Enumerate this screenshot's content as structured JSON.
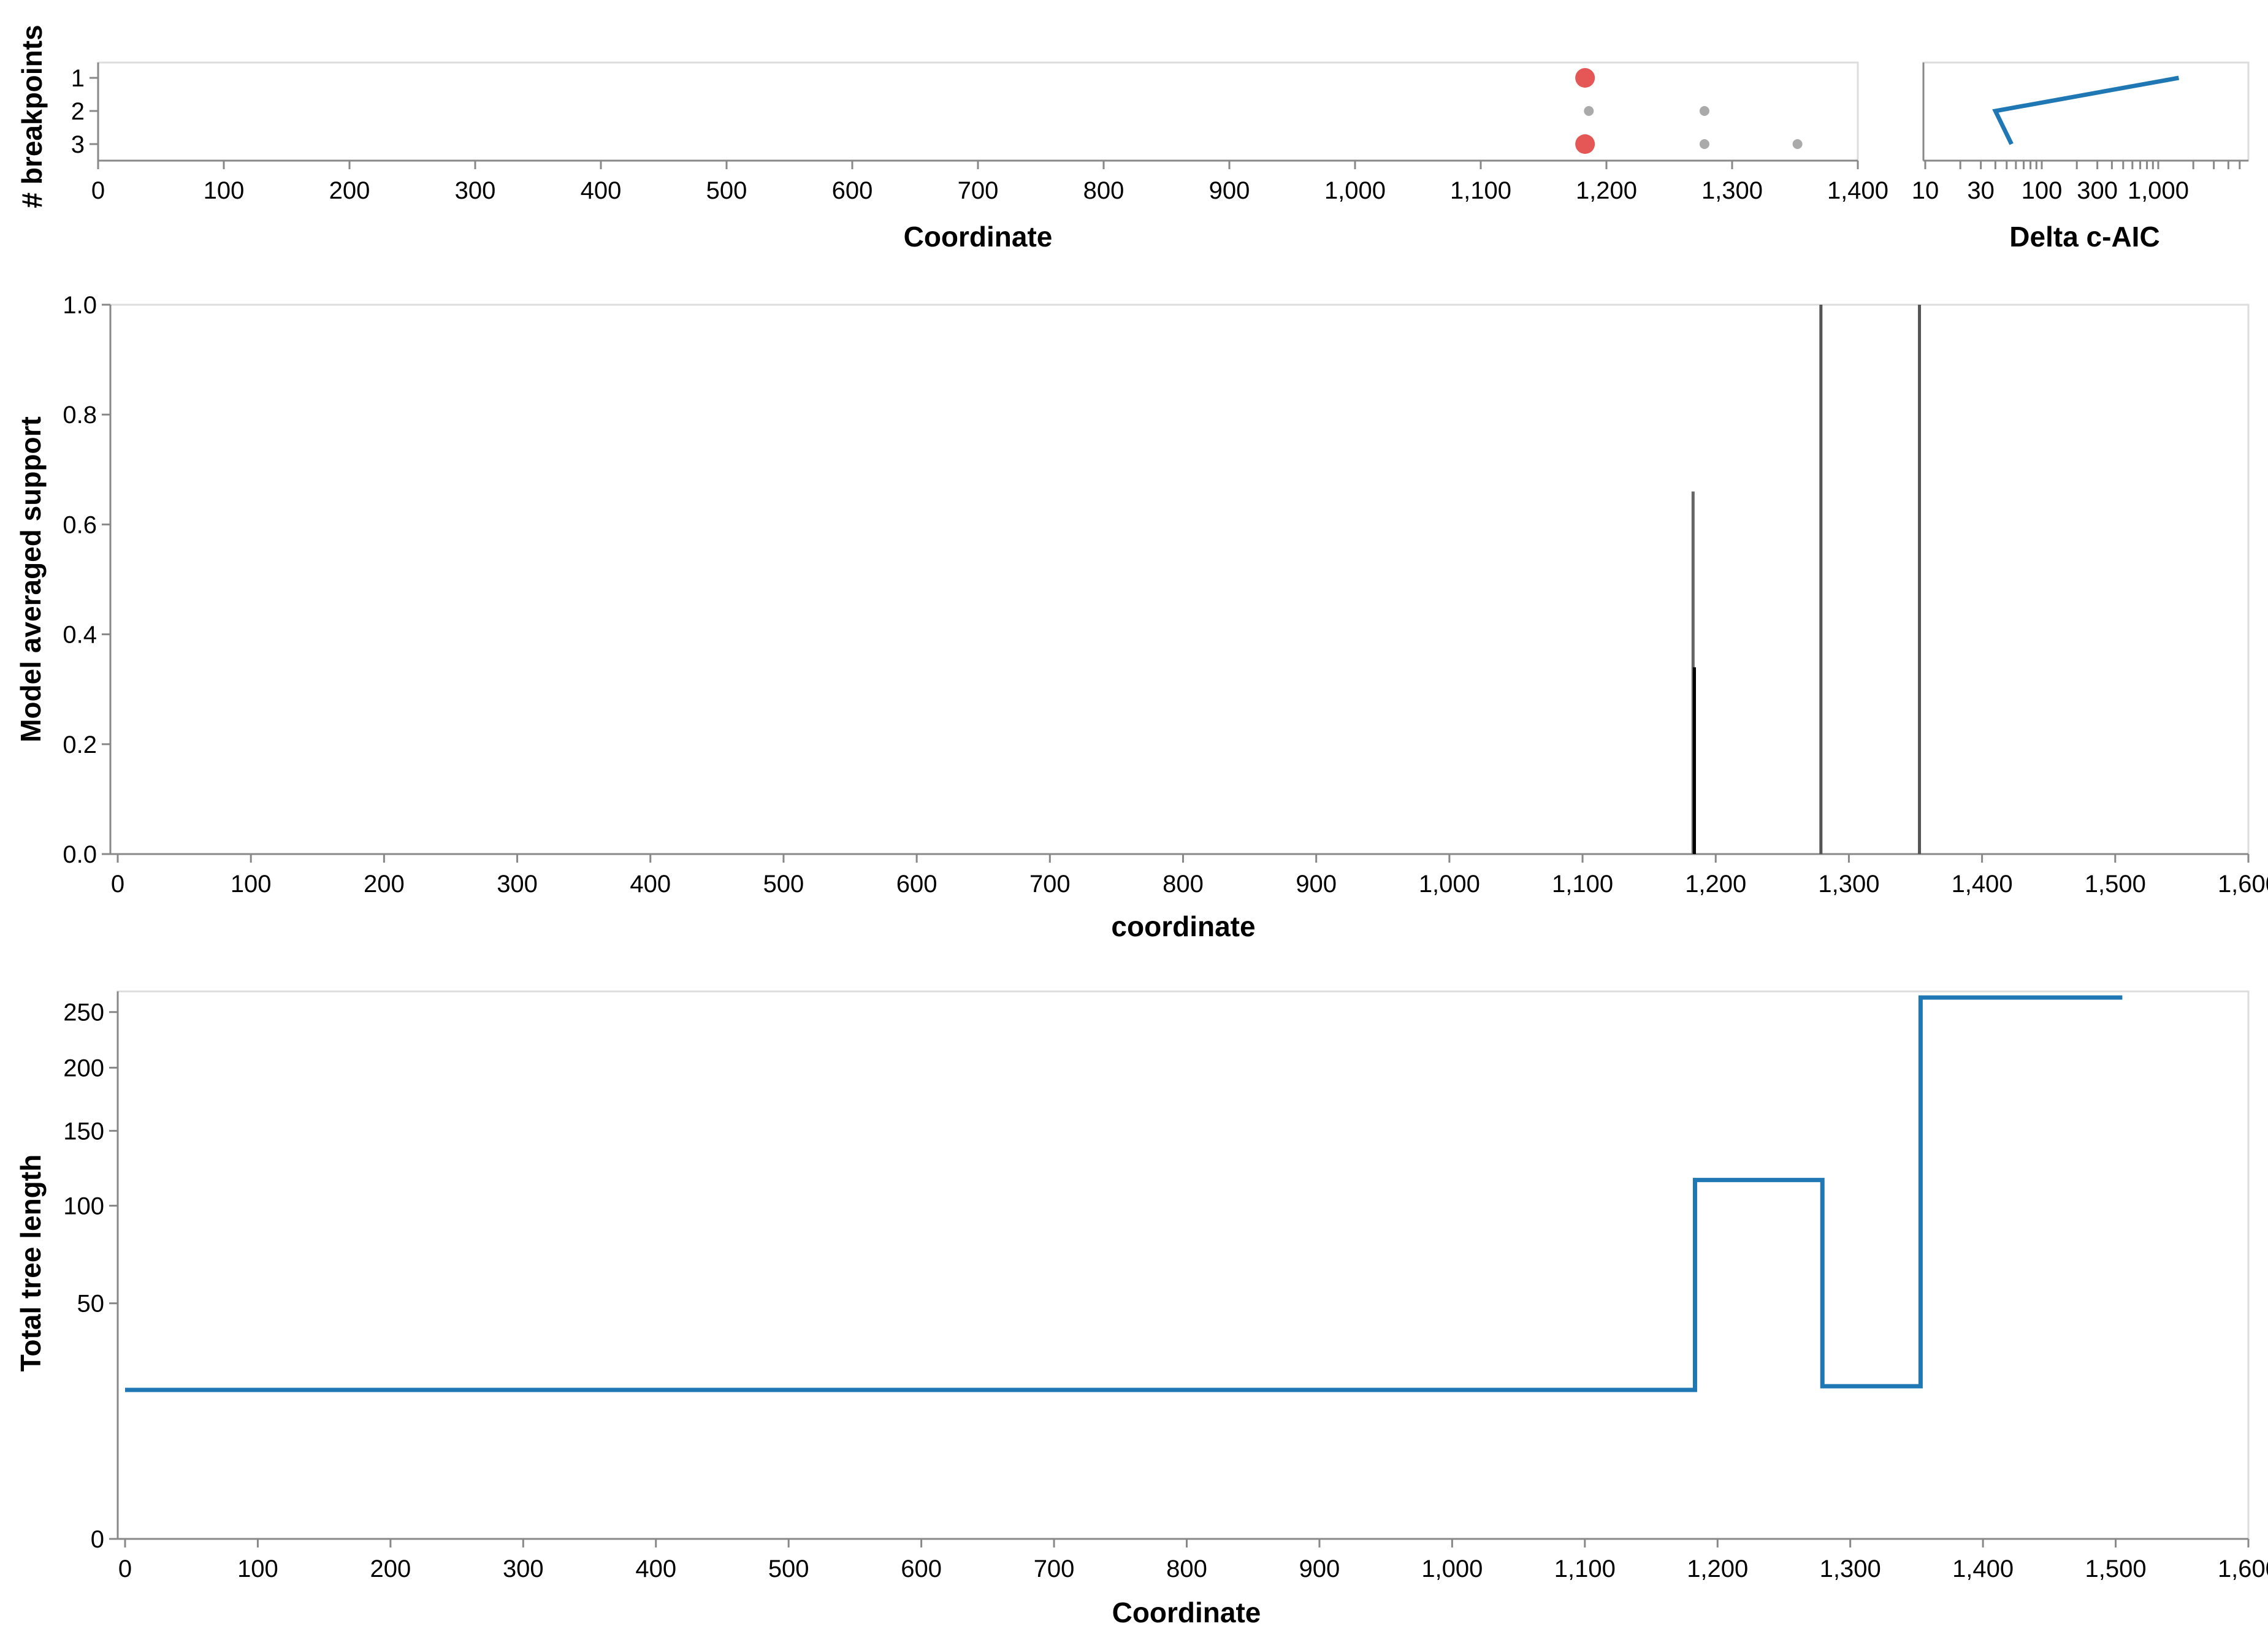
{
  "chart_data": [
    {
      "id": "breakpoints",
      "type": "scatter",
      "xlabel": "Coordinate",
      "ylabel": "# breakpoints",
      "xlim": [
        0,
        1400
      ],
      "xticks": [
        0,
        100,
        200,
        300,
        400,
        500,
        600,
        700,
        800,
        900,
        1000,
        1100,
        1200,
        1300,
        1400
      ],
      "xtick_labels": [
        "0",
        "100",
        "200",
        "300",
        "400",
        "500",
        "600",
        "700",
        "800",
        "900",
        "1,000",
        "1,100",
        "1,200",
        "1,300",
        "1,400"
      ],
      "yticks": [
        1,
        2,
        3
      ],
      "ytick_labels": [
        "1",
        "2",
        "3"
      ],
      "grid": false,
      "points": [
        {
          "x": 1183,
          "y": 1,
          "size": "large",
          "color": "#e45756"
        },
        {
          "x": 1183,
          "y": 3,
          "size": "large",
          "color": "#e45756"
        },
        {
          "x": 1186,
          "y": 2,
          "size": "small",
          "color": "#aaaaaa"
        },
        {
          "x": 1278,
          "y": 2,
          "size": "small",
          "color": "#aaaaaa"
        },
        {
          "x": 1278,
          "y": 3,
          "size": "small",
          "color": "#aaaaaa"
        },
        {
          "x": 1352,
          "y": 3,
          "size": "small",
          "color": "#aaaaaa"
        }
      ]
    },
    {
      "id": "delta-caic",
      "type": "line",
      "xlabel": "Delta c-AIC",
      "xscale": "log",
      "xlim": [
        10,
        2500
      ],
      "xticks": [
        10,
        30,
        100,
        300,
        1000
      ],
      "xtick_labels": [
        "10",
        "30",
        "100",
        "300",
        "1,000"
      ],
      "ylim": [
        1,
        3
      ],
      "color": "#1f77b4",
      "points": [
        {
          "x": 1500,
          "y": 1
        },
        {
          "x": 40,
          "y": 2
        },
        {
          "x": 55,
          "y": 3
        }
      ]
    },
    {
      "id": "support",
      "type": "bar",
      "xlabel": "coordinate",
      "ylabel": "Model averaged support",
      "xlim": [
        0,
        1600
      ],
      "ylim": [
        0,
        1
      ],
      "xticks": [
        0,
        100,
        200,
        300,
        400,
        500,
        600,
        700,
        800,
        900,
        1000,
        1100,
        1200,
        1300,
        1400,
        1500,
        1600
      ],
      "xtick_labels": [
        "0",
        "100",
        "200",
        "300",
        "400",
        "500",
        "600",
        "700",
        "800",
        "900",
        "1,000",
        "1,100",
        "1,200",
        "1,300",
        "1,400",
        "1,500",
        "1,600"
      ],
      "yticks": [
        0,
        0.2,
        0.4,
        0.6,
        0.8,
        1.0
      ],
      "ytick_labels": [
        "0.0",
        "0.2",
        "0.4",
        "0.6",
        "0.8",
        "1.0"
      ],
      "bars": [
        {
          "x": 1183,
          "y0": 0,
          "y1": 0.66,
          "color": "#666666"
        },
        {
          "x": 1184,
          "y0": 0,
          "y1": 0.34,
          "color": "#000000"
        },
        {
          "x": 1279,
          "y0": 0,
          "y1": 1.0,
          "color": "#555555"
        },
        {
          "x": 1353,
          "y0": 0,
          "y1": 1.0,
          "color": "#555555"
        }
      ]
    },
    {
      "id": "tree-length",
      "type": "line",
      "xlabel": "Coordinate",
      "ylabel": "Total tree length",
      "xlim": [
        0,
        1600
      ],
      "yscale": "sqrt",
      "ylim": [
        0,
        270
      ],
      "xticks": [
        0,
        100,
        200,
        300,
        400,
        500,
        600,
        700,
        800,
        900,
        1000,
        1100,
        1200,
        1300,
        1400,
        1500,
        1600
      ],
      "xtick_labels": [
        "0",
        "100",
        "200",
        "300",
        "400",
        "500",
        "600",
        "700",
        "800",
        "900",
        "1,000",
        "1,100",
        "1,200",
        "1,300",
        "1,400",
        "1,500",
        "1,600"
      ],
      "yticks": [
        0,
        50,
        100,
        150,
        200,
        250
      ],
      "ytick_labels": [
        "0",
        "50",
        "100",
        "150",
        "200",
        "250"
      ],
      "color": "#1f77b4",
      "points": [
        {
          "x": 0,
          "y": 20
        },
        {
          "x": 1183,
          "y": 20
        },
        {
          "x": 1183,
          "y": 116
        },
        {
          "x": 1279,
          "y": 116
        },
        {
          "x": 1279,
          "y": 21
        },
        {
          "x": 1353,
          "y": 21
        },
        {
          "x": 1353,
          "y": 264
        },
        {
          "x": 1505,
          "y": 264
        }
      ]
    }
  ]
}
